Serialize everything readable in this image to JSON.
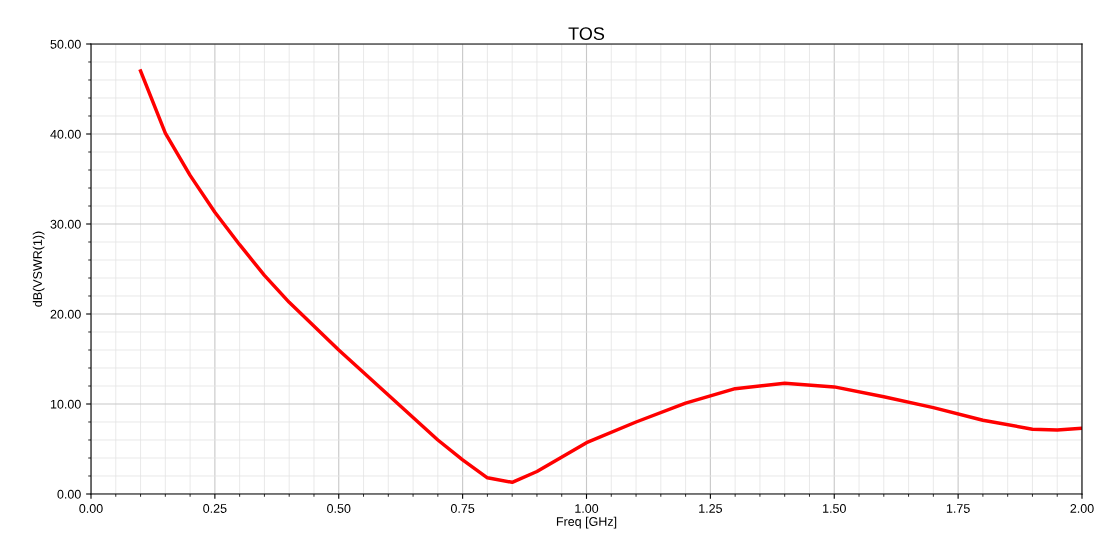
{
  "chart_data": {
    "type": "line",
    "title": "TOS",
    "xlabel": "Freq [GHz]",
    "ylabel": "dB(VSWR(1))",
    "x": [
      0.1,
      0.15,
      0.2,
      0.25,
      0.3,
      0.35,
      0.4,
      0.5,
      0.6,
      0.7,
      0.75,
      0.8,
      0.85,
      0.9,
      1.0,
      1.1,
      1.2,
      1.3,
      1.4,
      1.5,
      1.6,
      1.7,
      1.8,
      1.9,
      1.95,
      2.0
    ],
    "series": [
      {
        "color": "#ff0000",
        "values": [
          47,
          40.1,
          35.4,
          31.3,
          27.7,
          24.3,
          21.3,
          16,
          11,
          6,
          3.8,
          1.8,
          1.3,
          2.5,
          5.7,
          8,
          10.1,
          11.7,
          12.3,
          11.9,
          10.8,
          9.6,
          8.2,
          7.2,
          7.1,
          7.3
        ]
      }
    ],
    "xlim": [
      0,
      2
    ],
    "ylim": [
      0,
      50
    ],
    "xticks": [
      {
        "value": 0,
        "label": "0.00"
      },
      {
        "value": 0.25,
        "label": "0.25"
      },
      {
        "value": 0.5,
        "label": "0.50"
      },
      {
        "value": 0.75,
        "label": "0.75"
      },
      {
        "value": 1,
        "label": "1.00"
      },
      {
        "value": 1.25,
        "label": "1.25"
      },
      {
        "value": 1.5,
        "label": "1.50"
      },
      {
        "value": 1.75,
        "label": "1.75"
      },
      {
        "value": 2,
        "label": "2.00"
      }
    ],
    "yticks": [
      {
        "value": 0,
        "label": "0.00"
      },
      {
        "value": 10,
        "label": "10.00"
      },
      {
        "value": 20,
        "label": "20.00"
      },
      {
        "value": 30,
        "label": "30.00"
      },
      {
        "value": 40,
        "label": "40.00"
      },
      {
        "value": 50,
        "label": "50.00"
      }
    ],
    "grid": true,
    "marker": "none",
    "line_style": "solid"
  }
}
